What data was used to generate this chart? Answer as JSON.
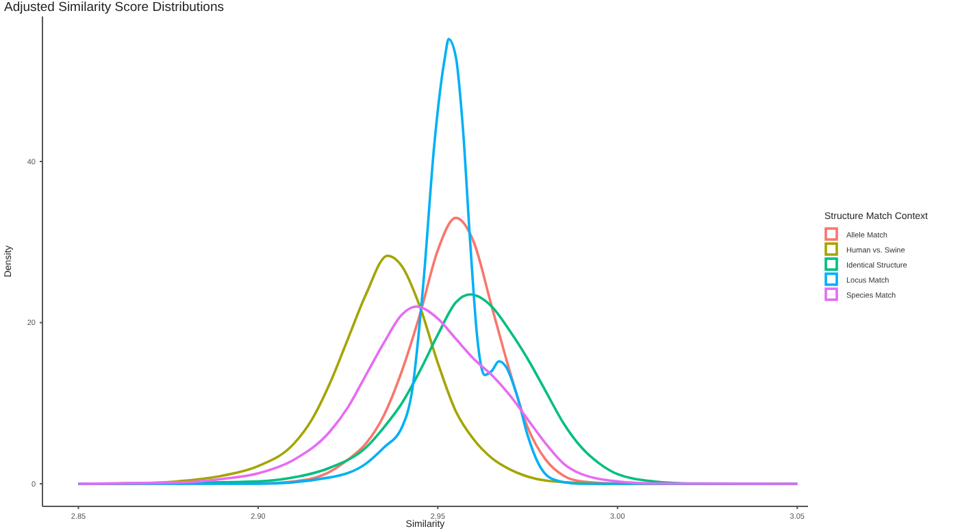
{
  "chart_data": {
    "type": "line",
    "title": "Adjusted Similarity Score Distributions",
    "xlabel": "Similarity",
    "ylabel": "Density",
    "legend_title": "Structure Match Context",
    "legend": "right",
    "grid": false,
    "marker": "none",
    "line_style": "solid",
    "xlim": [
      2.84,
      3.053
    ],
    "ylim": [
      -2.8,
      58
    ],
    "xticks": [
      {
        "value": 2.85,
        "label": "2.85"
      },
      {
        "value": 2.9,
        "label": "2.90"
      },
      {
        "value": 2.95,
        "label": "2.95"
      },
      {
        "value": 3,
        "label": "3.00"
      },
      {
        "value": 3.05,
        "label": "3.05"
      }
    ],
    "yticks": [
      0,
      20,
      40
    ],
    "series": [
      {
        "name": "Allele Match",
        "color": "#f8766d",
        "x": [
          2.85,
          2.9,
          2.91,
          2.92,
          2.925,
          2.93,
          2.935,
          2.94,
          2.945,
          2.95,
          2.955,
          2.96,
          2.965,
          2.97,
          2.975,
          2.98,
          2.985,
          2.99,
          3.0,
          3.05
        ],
        "values": [
          0,
          0.05,
          0.3,
          1.5,
          3,
          5,
          8.5,
          14,
          21,
          29,
          33,
          30,
          22,
          14,
          7,
          3,
          1,
          0.3,
          0.05,
          0
        ]
      },
      {
        "name": "Human vs. Swine",
        "color": "#a3a500",
        "x": [
          2.85,
          2.87,
          2.88,
          2.89,
          2.9,
          2.91,
          2.915,
          2.92,
          2.925,
          2.93,
          2.936,
          2.94,
          2.945,
          2.95,
          2.955,
          2.96,
          2.965,
          2.97,
          2.975,
          2.98,
          2.99,
          3.0,
          3.05
        ],
        "values": [
          0,
          0.1,
          0.4,
          1,
          2.2,
          5,
          8,
          12.5,
          18,
          23.5,
          28.3,
          27,
          22,
          15,
          9,
          5.5,
          3.2,
          1.8,
          0.9,
          0.4,
          0.1,
          0,
          0
        ]
      },
      {
        "name": "Identical Structure",
        "color": "#00bf7d",
        "x": [
          2.85,
          2.9,
          2.91,
          2.92,
          2.93,
          2.935,
          2.94,
          2.945,
          2.95,
          2.955,
          2.959,
          2.965,
          2.97,
          2.975,
          2.98,
          2.985,
          2.99,
          2.995,
          3.0,
          3.01,
          3.02,
          3.05
        ],
        "values": [
          0,
          0.3,
          0.8,
          2,
          4.5,
          7,
          10,
          14,
          18.5,
          22.5,
          23.5,
          22,
          19,
          15.5,
          11.5,
          7.5,
          4.5,
          2.5,
          1.2,
          0.3,
          0.05,
          0
        ]
      },
      {
        "name": "Locus Match",
        "color": "#00b0f6",
        "x": [
          2.85,
          2.9,
          2.92,
          2.93,
          2.935,
          2.94,
          2.943,
          2.946,
          2.949,
          2.952,
          2.953,
          2.955,
          2.957,
          2.959,
          2.961,
          2.963,
          2.965,
          2.967,
          2.969,
          2.972,
          2.975,
          2.978,
          2.981,
          2.985,
          2.99,
          3.05
        ],
        "values": [
          0,
          0,
          0.8,
          2.5,
          4.5,
          7,
          12,
          25,
          42,
          53,
          55.2,
          53,
          44,
          30,
          18,
          13.5,
          14,
          15.2,
          14.5,
          11,
          6,
          2.5,
          0.8,
          0.2,
          0,
          0
        ]
      },
      {
        "name": "Species Match",
        "color": "#e76bf3",
        "x": [
          2.85,
          2.88,
          2.89,
          2.9,
          2.91,
          2.92,
          2.925,
          2.93,
          2.935,
          2.94,
          2.944,
          2.95,
          2.955,
          2.96,
          2.965,
          2.97,
          2.975,
          2.98,
          2.985,
          2.99,
          3.0,
          3.01,
          3.05
        ],
        "values": [
          0,
          0.2,
          0.6,
          1.3,
          3,
          6.5,
          9.5,
          13.5,
          17.5,
          21,
          22,
          20.5,
          18,
          15.5,
          13.5,
          11,
          8,
          5,
          2.5,
          1.2,
          0.3,
          0.05,
          0
        ]
      }
    ]
  }
}
